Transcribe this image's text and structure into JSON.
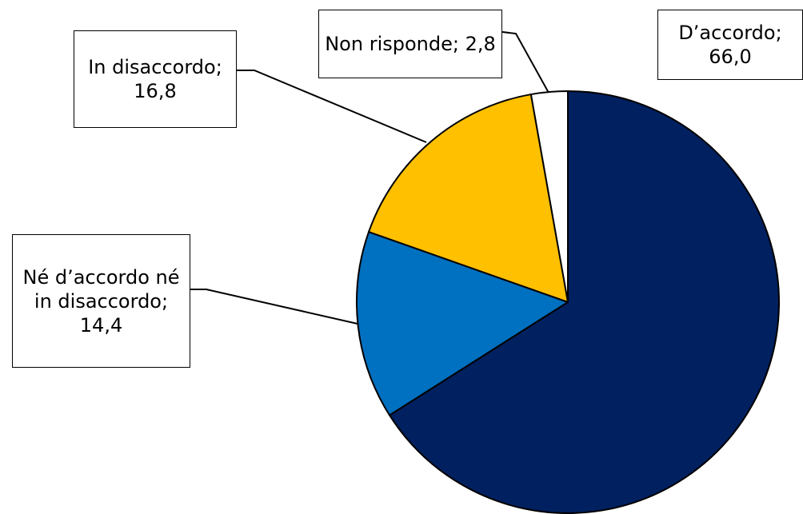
{
  "chart_data": {
    "type": "pie",
    "categories": [
      "D’accordo",
      "Né d’accordo né in disaccordo",
      "In disaccordo",
      "Non risponde"
    ],
    "values": [
      66.0,
      14.4,
      16.8,
      2.8
    ],
    "value_labels": [
      "66,0",
      "14,4",
      "16,8",
      "2,8"
    ],
    "label_separator": ";",
    "colors": [
      "#002060",
      "#0070C0",
      "#FFC000",
      "#FFFFFF"
    ],
    "start_angle": 0,
    "direction": "clockwise"
  }
}
